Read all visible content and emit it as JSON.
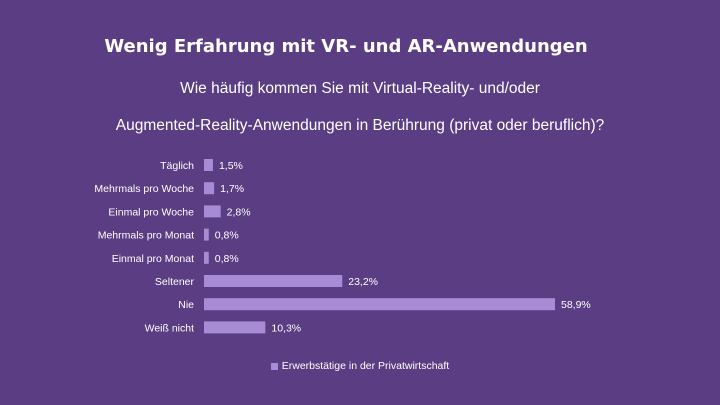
{
  "title": "Wenig Erfahrung mit VR- und AR-Anwendungen",
  "subtitle_line1": "Wie häufig kommen Sie mit Virtual-Reality- und/oder",
  "subtitle_line2": "Augmented-Reality-Anwendungen in Berührung (privat oder beruflich)?",
  "colors": {
    "background": "#5a3d82",
    "bar": "#a78bd4"
  },
  "chart_data": {
    "type": "bar",
    "orientation": "horizontal",
    "categories": [
      "Täglich",
      "Mehrmals pro Woche",
      "Einmal pro Woche",
      "Mehrmals pro Monat",
      "Einmal pro Monat",
      "Seltener",
      "Nie",
      "Weiß nicht"
    ],
    "series": [
      {
        "name": "Erwerbstätige in der Privatwirtschaft",
        "values": [
          1.5,
          1.7,
          2.8,
          0.8,
          0.8,
          23.2,
          58.9,
          10.3
        ]
      }
    ],
    "value_labels": [
      "1,5%",
      "1,7%",
      "2,8%",
      "0,8%",
      "0,8%",
      "23,2%",
      "58,9%",
      "10,3%"
    ],
    "xlim": [
      0,
      60
    ],
    "grid": false,
    "legend_position": "bottom"
  }
}
